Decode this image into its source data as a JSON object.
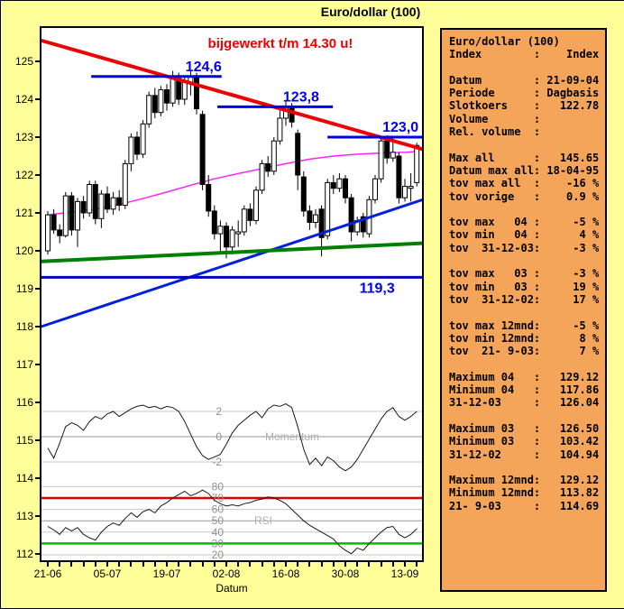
{
  "window": {
    "title": "Euro/dollar (100)"
  },
  "chart_data": {
    "type": "candlestick",
    "title": "Euro/dollar (100)",
    "annotation": "bijgewerkt t/m 14.30 u!",
    "annotation_color": "#ee0000",
    "y_axis": {
      "min": 112,
      "max": 125,
      "tick_step": 1
    },
    "x_axis": {
      "label": "Datum",
      "tick_labels": [
        "21-06",
        "05-07",
        "19-07",
        "02-08",
        "16-08",
        "30-08",
        "13-09"
      ],
      "candles_per_label": 10
    },
    "colors": {
      "candle_up": "#ffffff",
      "candle_down": "#000000",
      "candle_border": "#000000",
      "moving_average": "#ff22ff",
      "segment_blue": "#0000ee",
      "grid": "#c9c9c9",
      "grid_dark": "#999999",
      "indicator_line": "#1a1a1a",
      "indicator_text": "#909090",
      "indicator_name": "#b0b0b0"
    },
    "candles_ohlc": [
      [
        120.0,
        121.05,
        119.9,
        120.95
      ],
      [
        120.95,
        121.1,
        120.45,
        120.55
      ],
      [
        120.55,
        120.7,
        120.2,
        120.4
      ],
      [
        120.4,
        121.55,
        120.35,
        121.45
      ],
      [
        121.45,
        121.55,
        120.4,
        120.55
      ],
      [
        120.55,
        121.4,
        120.1,
        121.3
      ],
      [
        121.3,
        121.45,
        120.85,
        121.0
      ],
      [
        121.0,
        121.85,
        120.9,
        121.75
      ],
      [
        121.75,
        121.85,
        120.7,
        120.85
      ],
      [
        120.85,
        121.6,
        120.6,
        121.5
      ],
      [
        121.5,
        121.7,
        121.0,
        121.1
      ],
      [
        121.1,
        121.55,
        120.95,
        121.4
      ],
      [
        121.4,
        121.6,
        121.05,
        121.2
      ],
      [
        121.2,
        122.4,
        121.1,
        122.3
      ],
      [
        122.3,
        123.1,
        122.1,
        123.0
      ],
      [
        123.0,
        123.15,
        122.4,
        122.55
      ],
      [
        122.55,
        123.45,
        122.45,
        123.35
      ],
      [
        123.35,
        124.2,
        123.25,
        124.1
      ],
      [
        124.1,
        124.3,
        123.5,
        123.65
      ],
      [
        123.65,
        124.35,
        123.55,
        124.25
      ],
      [
        124.25,
        124.4,
        123.7,
        123.9
      ],
      [
        123.9,
        124.75,
        123.8,
        124.55
      ],
      [
        124.55,
        124.7,
        123.85,
        124.0
      ],
      [
        124.0,
        124.6,
        123.85,
        124.45
      ],
      [
        124.45,
        124.75,
        124.1,
        124.6
      ],
      [
        124.6,
        124.7,
        123.6,
        123.75
      ],
      [
        123.6,
        123.7,
        121.6,
        121.75
      ],
      [
        121.75,
        122.0,
        120.9,
        121.05
      ],
      [
        121.05,
        121.2,
        120.3,
        120.45
      ],
      [
        120.45,
        120.8,
        119.95,
        120.65
      ],
      [
        120.65,
        120.75,
        119.8,
        120.1
      ],
      [
        120.1,
        120.65,
        119.9,
        120.55
      ],
      [
        120.45,
        120.8,
        120.1,
        120.5
      ],
      [
        120.5,
        121.2,
        120.4,
        121.1
      ],
      [
        121.1,
        121.25,
        120.65,
        120.8
      ],
      [
        120.8,
        121.7,
        120.7,
        121.6
      ],
      [
        121.6,
        122.4,
        121.5,
        122.3
      ],
      [
        122.3,
        122.5,
        121.95,
        122.1
      ],
      [
        122.1,
        123.0,
        122.0,
        122.9
      ],
      [
        122.9,
        123.7,
        122.8,
        123.5
      ],
      [
        123.5,
        123.95,
        123.3,
        123.8
      ],
      [
        123.8,
        123.9,
        123.25,
        123.4
      ],
      [
        123.1,
        123.2,
        121.6,
        122.0
      ],
      [
        121.95,
        122.1,
        120.9,
        121.05
      ],
      [
        121.05,
        121.2,
        120.55,
        120.75
      ],
      [
        120.75,
        121.1,
        120.6,
        120.95
      ],
      [
        121.1,
        121.2,
        119.85,
        120.35
      ],
      [
        120.4,
        121.9,
        120.3,
        121.8
      ],
      [
        121.8,
        122.0,
        121.5,
        121.65
      ],
      [
        121.65,
        122.05,
        121.55,
        121.9
      ],
      [
        121.9,
        122.0,
        121.25,
        121.4
      ],
      [
        121.4,
        121.5,
        120.25,
        120.5
      ],
      [
        120.5,
        120.9,
        120.4,
        120.8
      ],
      [
        120.9,
        121.0,
        120.35,
        120.5
      ],
      [
        120.45,
        121.45,
        120.35,
        121.35
      ],
      [
        121.35,
        122.0,
        121.25,
        121.9
      ],
      [
        121.9,
        123.0,
        121.8,
        122.9
      ],
      [
        122.9,
        123.05,
        122.3,
        122.45
      ],
      [
        122.45,
        123.0,
        122.35,
        122.6
      ],
      [
        122.5,
        122.6,
        121.25,
        121.4
      ],
      [
        121.4,
        121.9,
        121.3,
        121.7
      ],
      [
        121.65,
        122.05,
        121.3,
        121.7
      ],
      [
        121.8,
        122.85,
        121.7,
        122.78
      ]
    ],
    "moving_average_anchors": [
      [
        0,
        120.95
      ],
      [
        4,
        121.02
      ],
      [
        8,
        121.1
      ],
      [
        12,
        121.22
      ],
      [
        16,
        121.38
      ],
      [
        20,
        121.55
      ],
      [
        24,
        121.73
      ],
      [
        28,
        121.9
      ],
      [
        32,
        122.04
      ],
      [
        36,
        122.17
      ],
      [
        40,
        122.3
      ],
      [
        44,
        122.42
      ],
      [
        48,
        122.5
      ],
      [
        52,
        122.55
      ],
      [
        56,
        122.58
      ],
      [
        60,
        122.6
      ],
      [
        62,
        122.62
      ]
    ],
    "trendlines": [
      {
        "name": "falling-resistance",
        "color": "#ee0000",
        "width": 4,
        "from_index": -1.1,
        "from_price": 125.55,
        "to_index": 63,
        "to_price": 122.68
      },
      {
        "name": "rising-support",
        "color": "#0022dd",
        "width": 3,
        "from_index": -1.1,
        "from_price": 118.0,
        "to_index": 63,
        "to_price": 121.35
      },
      {
        "name": "green-support",
        "color": "#008000",
        "width": 4,
        "from_index": -1.1,
        "from_price": 119.72,
        "to_index": 63,
        "to_price": 120.2
      }
    ],
    "horizontal_support": {
      "price": 119.3,
      "label": "119,3",
      "color": "#0000bb",
      "width": 3,
      "label_end_index": 58.3
    },
    "resistance_segments": [
      {
        "price": 124.6,
        "label": "124,6",
        "from_index": 7.3,
        "to_index": 29.2,
        "label_end_index": 29.2
      },
      {
        "price": 123.8,
        "label": "123,8",
        "from_index": 28.5,
        "to_index": 47.9,
        "label_end_index": 45.6
      },
      {
        "price": 123.0,
        "label": "123,0",
        "from_index": 47.0,
        "to_index": 63.0,
        "label_end_index": 62.3
      }
    ],
    "momentum": {
      "label": "Momentum",
      "gridlines": [
        2,
        0,
        -2
      ],
      "values": [
        -0.9,
        -1.7,
        -0.5,
        0.8,
        1.1,
        0.9,
        0.5,
        1.2,
        1.6,
        1.4,
        1.8,
        2.0,
        1.6,
        1.9,
        2.2,
        2.4,
        2.5,
        2.3,
        2.4,
        2.2,
        2.4,
        2.3,
        2.0,
        1.2,
        0.2,
        -0.8,
        -1.5,
        -1.8,
        -1.6,
        -1.4,
        -0.6,
        0.3,
        0.9,
        1.3,
        1.7,
        2.0,
        1.5,
        2.2,
        2.5,
        2.4,
        2.6,
        2.3,
        0.8,
        -1.0,
        -2.2,
        -1.7,
        -2.3,
        -1.6,
        -1.9,
        -2.4,
        -2.7,
        -2.4,
        -1.8,
        -1.0,
        -0.2,
        0.6,
        1.4,
        2.0,
        2.3,
        1.6,
        1.3,
        1.6,
        2.0
      ]
    },
    "rsi": {
      "label": "RSI",
      "gridlines": [
        80,
        70,
        60,
        50,
        40,
        30,
        20
      ],
      "overbought_level": 70,
      "oversold_level": 30,
      "overbought_color": "#dd0000",
      "oversold_color": "#00bb00",
      "values": [
        45,
        42,
        38,
        44,
        41,
        44,
        38,
        35,
        33,
        40,
        45,
        48,
        46,
        52,
        57,
        53,
        58,
        60,
        57,
        63,
        66,
        70,
        73,
        76,
        72,
        74,
        77,
        74,
        68,
        65,
        63,
        64,
        63,
        65,
        66,
        68,
        69,
        71,
        70,
        68,
        65,
        60,
        55,
        50,
        46,
        43,
        40,
        37,
        34,
        28,
        24,
        21,
        26,
        24,
        30,
        35,
        40,
        44,
        45,
        38,
        35,
        38,
        43
      ]
    }
  },
  "panel": {
    "lines": [
      "Euro/dollar (100)",
      "Index        :    Index",
      "",
      "Datum        : 21-09-04",
      "Periode      : Dagbasis",
      "Slotkoers    :   122.78",
      "Volume       :",
      "Rel. volume  :",
      "",
      "Max all      :   145.65",
      "Datum max all: 18-04-95",
      "tov max all  :    -16 %",
      "tov vorige   :    0.9 %",
      "",
      "tov max   04 :     -5 %",
      "tov min   04 :      4 %",
      "tov  31-12-03:     -3 %",
      "",
      "tov max   03 :     -3 %",
      "tov min   03 :     19 %",
      "tov  31-12-02:     17 %",
      "",
      "tov max 12mnd:     -5 %",
      "tov min 12mnd:      8 %",
      "tov  21- 9-03:      7 %",
      "",
      "Maximum 04   :   129.12",
      "Minimum 04   :   117.86",
      "31-12-03     :   126.04",
      "",
      "Maximum 03   :   126.50",
      "Minimum 03   :   103.42",
      "31-12-02     :   104.94",
      "",
      "Maximum 12mnd:   129.12",
      "Minimum 12mnd:   113.82",
      "21- 9-03     :   114.69"
    ]
  }
}
